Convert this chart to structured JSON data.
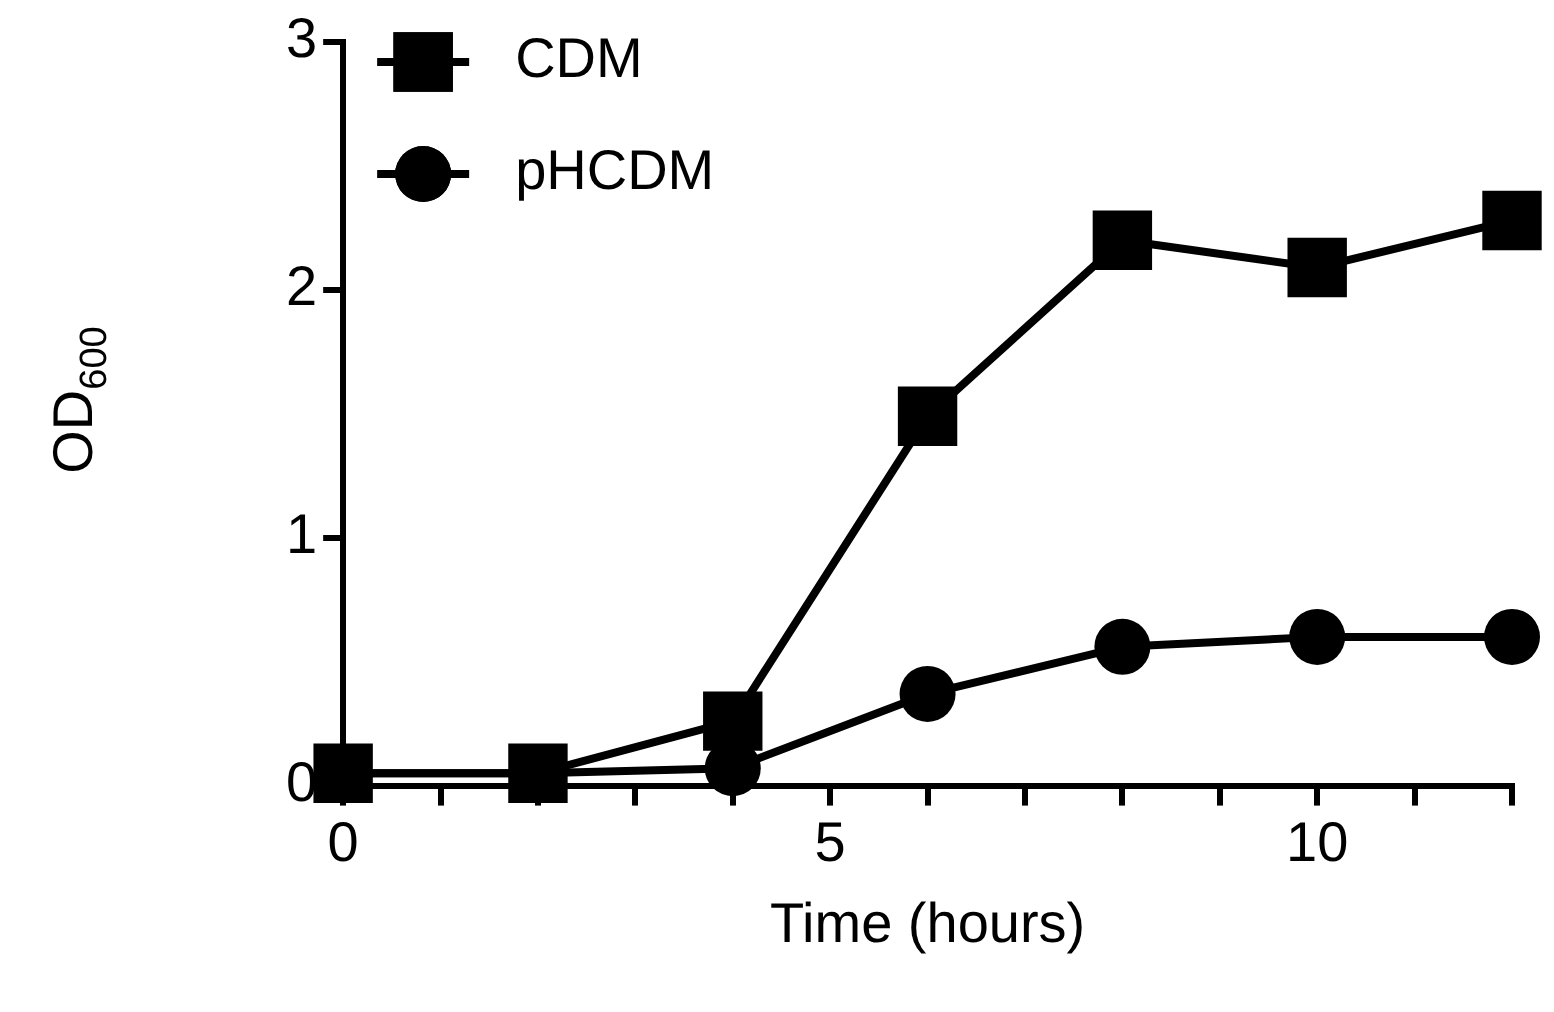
{
  "chart_data": {
    "type": "line",
    "xlabel": "Time (hours)",
    "ylabel": "OD$_{600}$",
    "x": [
      0,
      2,
      4,
      6,
      8,
      10,
      12
    ],
    "series": [
      {
        "name": "CDM",
        "color": "#000000",
        "marker": "square",
        "values": [
          0.05,
          0.05,
          0.26,
          1.49,
          2.2,
          2.09,
          2.28
        ]
      },
      {
        "name": "pHCDM",
        "color": "#000000",
        "marker": "circle",
        "values": [
          0.05,
          0.05,
          0.07,
          0.37,
          0.56,
          0.6,
          0.6
        ]
      }
    ],
    "xlim": [
      0,
      12
    ],
    "ylim": [
      0,
      3
    ],
    "xticks": [
      0,
      {
        "value": 1,
        "label": null
      },
      {
        "value": 2,
        "label": null
      },
      {
        "value": 3,
        "label": null
      },
      {
        "value": 4,
        "label": null
      },
      5,
      {
        "value": 6,
        "label": null
      },
      {
        "value": 7,
        "label": null
      },
      {
        "value": 8,
        "label": null
      },
      {
        "value": 9,
        "label": null
      },
      10,
      {
        "value": 11,
        "label": null
      },
      {
        "value": 12,
        "label": null
      }
    ],
    "yticks": [
      0,
      1,
      2,
      3
    ],
    "grid": false,
    "legend": "top left",
    "line_style": "solid"
  }
}
